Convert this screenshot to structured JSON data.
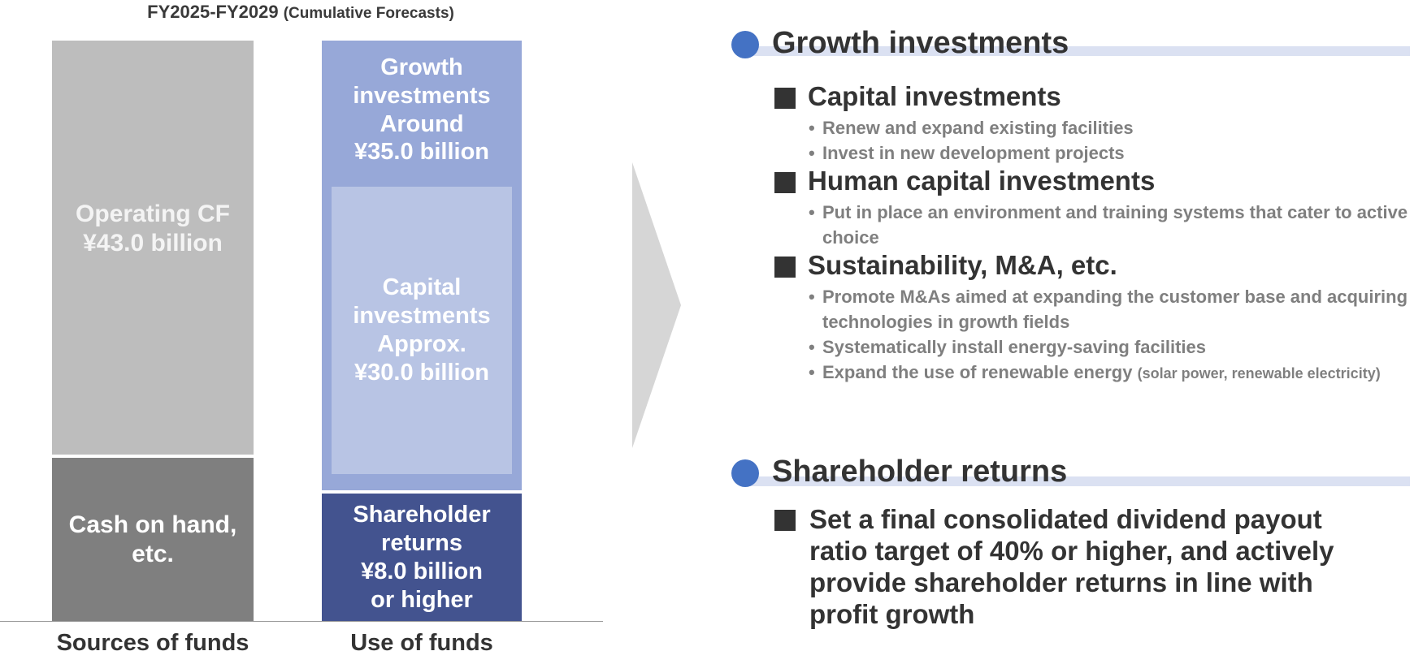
{
  "title": {
    "main": "FY2025-FY2029",
    "sub": "(Cumulative Forecasts)"
  },
  "colors": {
    "accent": "#4472c4",
    "operating_cf": "#bdbdbd",
    "cash": "#7f7f7f",
    "growth": "#97a8d8",
    "capital": "#b8c4e4",
    "shareholder": "#43538f"
  },
  "sources": {
    "label": "Sources of funds",
    "operating_cf": {
      "line1": "Operating CF",
      "line2": "¥43.0 billion"
    },
    "cash": {
      "line1": "Cash on hand,",
      "line2": "etc."
    }
  },
  "uses": {
    "label": "Use of funds",
    "growth": {
      "line1": "Growth",
      "line2": "investments",
      "line3": "Around",
      "line4": "¥35.0 billion"
    },
    "capital": {
      "line1": "Capital",
      "line2": "investments",
      "line3": "Approx.",
      "line4": "¥30.0 billion"
    },
    "shareholder": {
      "line1": "Shareholder",
      "line2": "returns",
      "line3": "¥8.0 billion",
      "line4": "or higher"
    }
  },
  "growth_section": {
    "title": "Growth investments",
    "items": [
      {
        "heading": "Capital investments",
        "bullets": [
          "Renew and expand existing facilities",
          "Invest in new development projects"
        ]
      },
      {
        "heading": "Human capital investments",
        "bullets": [
          "Put in place an environment and training systems that cater to active choice"
        ]
      },
      {
        "heading": "Sustainability, M&A, etc.",
        "bullets": [
          "Promote M&As aimed at expanding the customer base and acquiring technologies in growth fields",
          "Systematically install energy-saving facilities",
          "Expand the use of renewable energy"
        ],
        "note": "(solar power, renewable electricity)"
      }
    ]
  },
  "returns_section": {
    "title": "Shareholder returns",
    "text": "Set a final consolidated dividend payout ratio target of 40% or higher, and actively provide shareholder returns in line with profit growth"
  }
}
